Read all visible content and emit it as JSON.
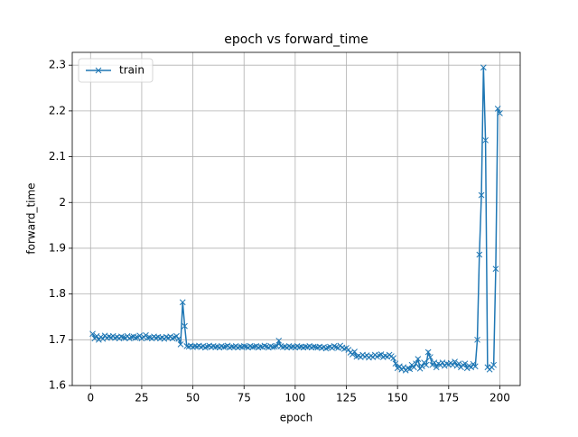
{
  "chart_data": {
    "type": "line",
    "title": "epoch vs forward_time",
    "x_label": "epoch",
    "y_label": "forward_time",
    "x": [
      1,
      2,
      3,
      4,
      5,
      6,
      7,
      8,
      9,
      10,
      11,
      12,
      13,
      14,
      15,
      16,
      17,
      18,
      19,
      20,
      21,
      22,
      23,
      24,
      25,
      26,
      27,
      28,
      29,
      30,
      31,
      32,
      33,
      34,
      35,
      36,
      37,
      38,
      39,
      40,
      41,
      42,
      43,
      44,
      45,
      46,
      47,
      48,
      49,
      50,
      51,
      52,
      53,
      54,
      55,
      56,
      57,
      58,
      59,
      60,
      61,
      62,
      63,
      64,
      65,
      66,
      67,
      68,
      69,
      70,
      71,
      72,
      73,
      74,
      75,
      76,
      77,
      78,
      79,
      80,
      81,
      82,
      83,
      84,
      85,
      86,
      87,
      88,
      89,
      90,
      91,
      92,
      93,
      94,
      95,
      96,
      97,
      98,
      99,
      100,
      101,
      102,
      103,
      104,
      105,
      106,
      107,
      108,
      109,
      110,
      111,
      112,
      113,
      114,
      115,
      116,
      117,
      118,
      119,
      120,
      121,
      122,
      123,
      124,
      125,
      126,
      127,
      128,
      129,
      130,
      131,
      132,
      133,
      134,
      135,
      136,
      137,
      138,
      139,
      140,
      141,
      142,
      143,
      144,
      145,
      146,
      147,
      148,
      149,
      150,
      151,
      152,
      153,
      154,
      155,
      156,
      157,
      158,
      159,
      160,
      161,
      162,
      163,
      164,
      165,
      166,
      167,
      168,
      169,
      170,
      171,
      172,
      173,
      174,
      175,
      176,
      177,
      178,
      179,
      180,
      181,
      182,
      183,
      184,
      185,
      186,
      187,
      188,
      189,
      190,
      191,
      192,
      193,
      194,
      195,
      196,
      197,
      198,
      199,
      200
    ],
    "series": [
      {
        "name": "train",
        "color": "#1f77b4",
        "values": [
          1.713,
          1.703,
          1.708,
          1.7,
          1.706,
          1.702,
          1.709,
          1.704,
          1.707,
          1.705,
          1.708,
          1.704,
          1.706,
          1.703,
          1.707,
          1.705,
          1.704,
          1.708,
          1.703,
          1.706,
          1.707,
          1.704,
          1.705,
          1.709,
          1.703,
          1.706,
          1.71,
          1.704,
          1.705,
          1.703,
          1.707,
          1.704,
          1.706,
          1.703,
          1.705,
          1.702,
          1.706,
          1.704,
          1.707,
          1.703,
          1.705,
          1.708,
          1.702,
          1.69,
          1.782,
          1.73,
          1.686,
          1.685,
          1.687,
          1.684,
          1.686,
          1.685,
          1.687,
          1.684,
          1.686,
          1.683,
          1.685,
          1.687,
          1.684,
          1.686,
          1.684,
          1.685,
          1.683,
          1.686,
          1.684,
          1.685,
          1.687,
          1.683,
          1.685,
          1.684,
          1.686,
          1.683,
          1.685,
          1.684,
          1.686,
          1.685,
          1.683,
          1.686,
          1.684,
          1.685,
          1.686,
          1.683,
          1.685,
          1.684,
          1.687,
          1.685,
          1.683,
          1.686,
          1.684,
          1.685,
          1.686,
          1.698,
          1.686,
          1.684,
          1.685,
          1.683,
          1.686,
          1.684,
          1.685,
          1.683,
          1.686,
          1.684,
          1.685,
          1.683,
          1.685,
          1.684,
          1.686,
          1.683,
          1.685,
          1.684,
          1.683,
          1.685,
          1.682,
          1.684,
          1.681,
          1.683,
          1.685,
          1.682,
          1.686,
          1.684,
          1.682,
          1.687,
          1.683,
          1.68,
          1.682,
          1.678,
          1.672,
          1.668,
          1.674,
          1.663,
          1.665,
          1.662,
          1.667,
          1.663,
          1.666,
          1.661,
          1.665,
          1.662,
          1.667,
          1.663,
          1.666,
          1.668,
          1.662,
          1.665,
          1.663,
          1.667,
          1.664,
          1.66,
          1.648,
          1.638,
          1.642,
          1.635,
          1.64,
          1.633,
          1.638,
          1.636,
          1.645,
          1.64,
          1.648,
          1.658,
          1.637,
          1.642,
          1.65,
          1.645,
          1.673,
          1.662,
          1.645,
          1.65,
          1.64,
          1.648,
          1.645,
          1.65,
          1.643,
          1.648,
          1.646,
          1.649,
          1.645,
          1.652,
          1.643,
          1.648,
          1.64,
          1.645,
          1.648,
          1.638,
          1.643,
          1.64,
          1.647,
          1.642,
          1.7,
          1.886,
          2.016,
          2.295,
          2.136,
          1.64,
          1.635,
          1.64,
          1.645,
          1.855,
          2.205,
          2.195
        ]
      }
    ],
    "xlim": [
      -8.95,
      209.95
    ],
    "xticks": [
      0,
      25,
      50,
      75,
      100,
      125,
      150,
      175,
      200
    ],
    "ylim": [
      1.6,
      2.328
    ],
    "yticks": [
      1.6,
      1.7,
      1.8,
      1.9,
      2.0,
      2.1,
      2.2,
      2.3
    ],
    "grid": true,
    "legend": "upper left"
  }
}
